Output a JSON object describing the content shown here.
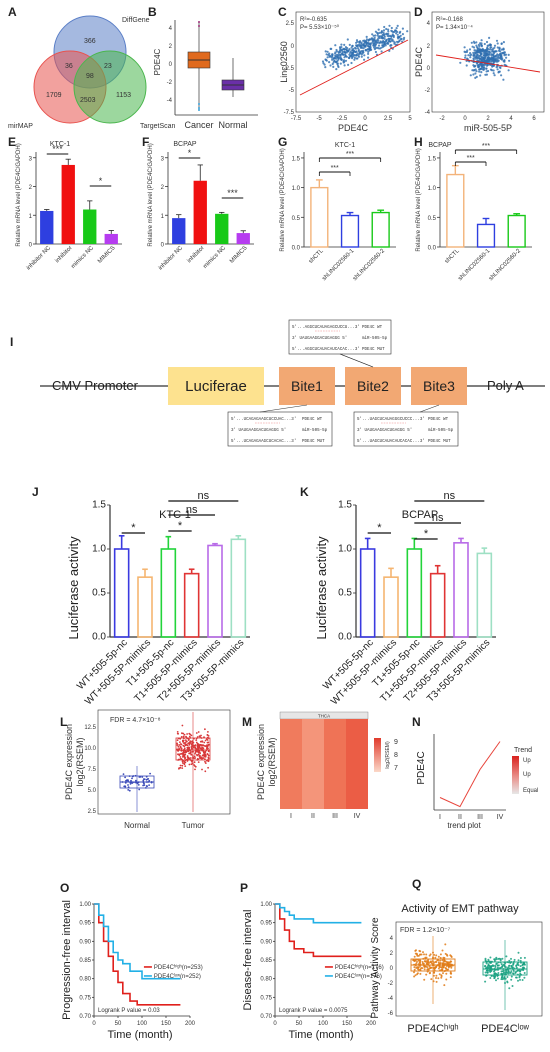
{
  "panels": {
    "A": {
      "label": "A",
      "sets": [
        "DiffGene",
        "mirMAP",
        "TargetScan"
      ],
      "counts": {
        "diffgene_only": "366",
        "diff_mirmap": "36",
        "diff_target": "23",
        "all": "98",
        "mirmap_only": "1709",
        "mirmap_target": "2503",
        "target_only": "1153"
      },
      "colors": {
        "diffgene": "#5b7fc7",
        "mirmap": "#e8534f",
        "targetscan": "#4bb64e"
      }
    },
    "B": {
      "label": "B",
      "ylabel": "PDE4C",
      "ticks": [
        "4",
        "2",
        "0",
        "-2",
        "-4"
      ],
      "groups": [
        "Cancer",
        "Normal"
      ],
      "colors": {
        "cancer": "#e06a1e",
        "normal": "#6a2fa8"
      }
    },
    "C": {
      "label": "C",
      "r2": "R²=-0.635",
      "p": "P= 5.53×10⁻⁵⁰",
      "xlabel": "PDE4C",
      "ylabel": "Linc02560",
      "xticks": [
        "-7.5",
        "-5",
        "-2.5",
        "0",
        "2.5",
        "5"
      ],
      "yticks": [
        "2.5",
        "0",
        "-2.5",
        "-5",
        "-7.5"
      ]
    },
    "D": {
      "label": "D",
      "r2": "R²=-0.168",
      "p": "P= 1.34×10⁻⁴",
      "xlabel": "miR-505-5P",
      "ylabel": "PDE4C",
      "xticks": [
        "-2",
        "0",
        "2",
        "4",
        "6"
      ],
      "yticks": [
        "4",
        "2",
        "0",
        "-2",
        "-4"
      ]
    },
    "E": {
      "label": "E",
      "title": "KTC-1",
      "ylabel": "Relative mRNA level (PDE4C/GAPDH)",
      "yticks": [
        "3",
        "2",
        "1",
        "0"
      ],
      "categories": [
        "inhibitor NC",
        "inhibitor",
        "mimics NC",
        "MIMICS"
      ],
      "sig": [
        "***",
        "*"
      ]
    },
    "F": {
      "label": "F",
      "title": "BCPAP",
      "ylabel": "Relative mRNA level (PDE4C/GAPDH)",
      "yticks": [
        "3",
        "2",
        "1",
        "0"
      ],
      "categories": [
        "inhibitor NC",
        "inhibitor",
        "mimics NC",
        "MIMICS"
      ],
      "sig": [
        "*",
        "***"
      ]
    },
    "G": {
      "label": "G",
      "title": "KTC-1",
      "ylabel": "Relative mRNA level (PDE4C/GAPDH)",
      "yticks": [
        "1.5",
        "1.0",
        "0.5",
        "0.0"
      ],
      "categories": [
        "shCTL",
        "shLINC02560-1",
        "shLINC02560-2"
      ],
      "sig": [
        "***",
        "***"
      ]
    },
    "H": {
      "label": "H",
      "title": "BCPAP",
      "ylabel": "Relative mRNA level (PDE4C/GAPDH)",
      "yticks": [
        "1.5",
        "1.0",
        "0.5",
        "0.0"
      ],
      "categories": [
        "shCTL",
        "shLINC02560-1",
        "shLINC02560-2"
      ],
      "sig": [
        "***",
        "***"
      ]
    },
    "I": {
      "label": "I",
      "promoter": "CMV Promoter",
      "reporter": "Luciferae",
      "sites": [
        "Bite1",
        "Bite2",
        "Bite3"
      ],
      "polya": "Poly A",
      "box_top": [
        {
          "seq": "5'...AGGCUCAUAGAGCUCCU...3'",
          "tag": "PDE4C  WT"
        },
        {
          "seq": "3'   UAUGAAGGACUGAGGG    5'",
          "tag": "miR-505-5p"
        },
        {
          "seq": "5'...AGGCUCAUACAUCACAC...3'",
          "tag": "PDE4C  MUT"
        }
      ],
      "box_left": [
        {
          "seq": "5'...UCAGAGAAGCUCCUAC...3'",
          "tag": "PDE4C  WT"
        },
        {
          "seq": "3'   UAUGAAGGACUGAGGG  5'",
          "tag": "miR-505-5p"
        },
        {
          "seq": "5'...UCAGAGAAGCUCACAC...3'",
          "tag": "PDE4C  MUT"
        }
      ],
      "box_right": [
        {
          "seq": "5'...UAGCUCAUAGGGCUCCC...3'",
          "tag": "PDE4C  WT"
        },
        {
          "seq": "3'   UAUGAAGGACUGAGGG    5'",
          "tag": "miR-505-5p"
        },
        {
          "seq": "5'...UAGCUCAUACAUCACAC...3'",
          "tag": "PDE4C  MUT"
        }
      ]
    },
    "J": {
      "label": "J",
      "title": "KTC-1",
      "ylabel": "Luciferase activity",
      "yticks": [
        "1.5",
        "1.0",
        "0.5",
        "0.0"
      ],
      "categories": [
        "WT+505-5p-nc",
        "WT+505-5P-mimics",
        "T1+505-5p-nc",
        "T1+505-5P-mimics",
        "T2+505-5P-mimics",
        "T3+505-5P-mimics"
      ],
      "sig": [
        "*",
        "*",
        "ns",
        "ns"
      ]
    },
    "K": {
      "label": "K",
      "title": "BCPAP",
      "ylabel": "Luciferase activity",
      "yticks": [
        "1.5",
        "1.0",
        "0.5",
        "0.0"
      ],
      "categories": [
        "WT+505-5p-nc",
        "WT+505-5P-mimics",
        "T1+505-5p-nc",
        "T1+505-5P-mimics",
        "T2+505-5P-mimics",
        "T3+505-5P-mimics"
      ],
      "sig": [
        "*",
        "*",
        "ns",
        "ns"
      ]
    },
    "L": {
      "label": "L",
      "fdr": "FDR = 4.7×10⁻⁸",
      "ylabel1": "PDE4C expression",
      "ylabel2": "log2(RSEM)",
      "yticks": [
        "12.5",
        "10.0",
        "7.5",
        "5.0",
        "2.5"
      ],
      "groups": [
        "Normal",
        "Tumor"
      ]
    },
    "M": {
      "label": "M",
      "header": "THCA",
      "ylabel1": "PDE4C expression",
      "ylabel2": "log2(RSEM)",
      "stages": [
        "I",
        "II",
        "III",
        "IV"
      ],
      "scale_label": "log2(RSEM)",
      "scale_ticks": [
        "9",
        "8",
        "7"
      ]
    },
    "N": {
      "label": "N",
      "ylabel": "PDE4C",
      "xlabel": "trend plot",
      "stages": [
        "I",
        "II",
        "III",
        "IV"
      ],
      "legend_title": "Trend",
      "legend_items": [
        "Up",
        "Up",
        "Equal"
      ]
    },
    "O": {
      "label": "O",
      "ylabel": "Progression-free interval",
      "xlabel": "Time (month)",
      "yticks": [
        "1.00",
        "0.95",
        "0.90",
        "0.85",
        "0.80",
        "0.75",
        "0.70"
      ],
      "xticks": [
        "0",
        "50",
        "100",
        "150",
        "200"
      ],
      "legend": [
        "PDE4Cʰⁱᵍʰ(n=253)",
        "PDE4Cˡᵒʷ(n=252)"
      ],
      "pval": "Logrank P value = 0.03"
    },
    "P": {
      "label": "P",
      "ylabel": "Disease-free interval",
      "xlabel": "Time (month)",
      "yticks": [
        "1.00",
        "0.95",
        "0.90",
        "0.85",
        "0.80",
        "0.75",
        "0.70"
      ],
      "xticks": [
        "0",
        "50",
        "100",
        "150",
        "200"
      ],
      "legend": [
        "PDE4Cʰⁱᵍʰ(n=176)",
        "PDE4Cˡᵒʷ(n=176)"
      ],
      "pval": "Logrank P value = 0.0075"
    },
    "Q": {
      "label": "Q",
      "title": "Activity of EMT pathway",
      "fdr": "FDR = 1.2×10⁻⁷",
      "ylabel": "Pathway Activity Score",
      "yticks": [
        "4",
        "2",
        "0",
        "-2",
        "-4",
        "-6"
      ],
      "groups": [
        "PDE4Cʰⁱᵍʰ",
        "PDE4Cˡᵒʷ"
      ]
    }
  },
  "chart_data": [
    {
      "type": "bar",
      "title": "KTC-1",
      "ylabel": "Relative mRNA level (PDE4C/GAPDH)",
      "categories": [
        "inhibitor NC",
        "inhibitor",
        "mimics NC",
        "MIMICS"
      ],
      "values": [
        1.15,
        2.75,
        1.2,
        0.35
      ],
      "errors": [
        0.05,
        0.2,
        0.3,
        0.12
      ],
      "ylim": [
        0,
        3.2
      ],
      "colors": [
        "#2e3fe0",
        "#f01010",
        "#18c918",
        "#b63cf0"
      ]
    },
    {
      "type": "bar",
      "title": "BCPAP",
      "ylabel": "Relative mRNA level (PDE4C/GAPDH)",
      "categories": [
        "inhibitor NC",
        "inhibitor",
        "mimics NC",
        "MIMICS"
      ],
      "values": [
        0.9,
        2.2,
        1.05,
        0.38
      ],
      "errors": [
        0.12,
        0.55,
        0.05,
        0.08
      ],
      "ylim": [
        0,
        3.2
      ],
      "colors": [
        "#2e3fe0",
        "#f01010",
        "#18c918",
        "#b63cf0"
      ]
    },
    {
      "type": "bar",
      "title": "KTC-1",
      "ylabel": "Relative mRNA level (PDE4C/GAPDH)",
      "categories": [
        "shCTL",
        "shLINC02560-1",
        "shLINC02560-2"
      ],
      "values": [
        1.0,
        0.53,
        0.58
      ],
      "errors": [
        0.13,
        0.05,
        0.04
      ],
      "ylim": [
        0,
        1.6
      ],
      "colors": [
        "#f3b37a",
        "#2e3fe0",
        "#18c918"
      ]
    },
    {
      "type": "bar",
      "title": "BCPAP",
      "ylabel": "Relative mRNA level (PDE4C/GAPDH)",
      "categories": [
        "shCTL",
        "shLINC02560-1",
        "shLINC02560-2"
      ],
      "values": [
        1.22,
        0.38,
        0.53
      ],
      "errors": [
        0.15,
        0.1,
        0.03
      ],
      "ylim": [
        0,
        1.6
      ],
      "colors": [
        "#f3b37a",
        "#2e3fe0",
        "#18c918"
      ]
    },
    {
      "type": "bar",
      "title": "KTC-1",
      "ylabel": "Luciferase activity",
      "categories": [
        "WT+505-5p-nc",
        "WT+505-5P-mimics",
        "T1+505-5p-nc",
        "T1+505-5P-mimics",
        "T2+505-5P-mimics",
        "T3+505-5P-mimics"
      ],
      "values": [
        1.0,
        0.68,
        1.0,
        0.72,
        1.04,
        1.11
      ],
      "errors": [
        0.15,
        0.09,
        0.14,
        0.05,
        0.02,
        0.04
      ],
      "ylim": [
        0,
        1.5
      ],
      "colors": [
        "#3a3ae0",
        "#f5b571",
        "#22d43a",
        "#e03434",
        "#b86be8",
        "#9ee0c4"
      ]
    },
    {
      "type": "bar",
      "title": "BCPAP",
      "ylabel": "Luciferase activity",
      "categories": [
        "WT+505-5p-nc",
        "WT+505-5P-mimics",
        "T1+505-5p-nc",
        "T1+505-5P-mimics",
        "T2+505-5P-mimics",
        "T3+505-5P-mimics"
      ],
      "values": [
        1.0,
        0.68,
        1.0,
        0.72,
        1.07,
        0.95
      ],
      "errors": [
        0.12,
        0.1,
        0.12,
        0.09,
        0.05,
        0.06
      ],
      "ylim": [
        0,
        1.5
      ],
      "colors": [
        "#3a3ae0",
        "#f5b571",
        "#22d43a",
        "#e03434",
        "#b86be8",
        "#9ee0c4"
      ]
    },
    {
      "type": "line",
      "ylabel": "PDE4C",
      "xlabel": "trend plot",
      "categories": [
        "I",
        "II",
        "III",
        "IV"
      ],
      "values": [
        0.15,
        0.02,
        0.55,
        0.95
      ],
      "color": "#e8453c"
    },
    {
      "type": "line",
      "ylabel": "Progression-free interval",
      "xlabel": "Time (month)",
      "ylim": [
        0.7,
        1.0
      ],
      "xlim": [
        0,
        200
      ],
      "series": [
        {
          "name": "PDE4Cʰⁱᵍʰ(n=253)",
          "color": "#e0201c",
          "x": [
            0,
            10,
            20,
            30,
            40,
            50,
            60,
            75,
            90,
            180
          ],
          "y": [
            1.0,
            0.95,
            0.9,
            0.86,
            0.82,
            0.79,
            0.76,
            0.74,
            0.73,
            0.73
          ]
        },
        {
          "name": "PDE4Cˡᵒʷ(n=252)",
          "color": "#22b0e6",
          "x": [
            0,
            10,
            20,
            30,
            40,
            50,
            60,
            75,
            100,
            180
          ],
          "y": [
            1.0,
            0.97,
            0.94,
            0.9,
            0.87,
            0.85,
            0.84,
            0.82,
            0.8,
            0.8
          ]
        }
      ]
    },
    {
      "type": "line",
      "ylabel": "Disease-free interval",
      "xlabel": "Time (month)",
      "ylim": [
        0.7,
        1.0
      ],
      "xlim": [
        0,
        200
      ],
      "series": [
        {
          "name": "PDE4Cʰⁱᵍʰ(n=176)",
          "color": "#e0201c",
          "x": [
            0,
            10,
            20,
            30,
            40,
            60,
            80,
            180
          ],
          "y": [
            1.0,
            0.96,
            0.93,
            0.9,
            0.88,
            0.87,
            0.86,
            0.86
          ]
        },
        {
          "name": "PDE4Cˡᵒʷ(n=176)",
          "color": "#22b0e6",
          "x": [
            0,
            10,
            20,
            30,
            40,
            60,
            80,
            180
          ],
          "y": [
            1.0,
            0.99,
            0.98,
            0.97,
            0.96,
            0.96,
            0.95,
            0.95
          ]
        }
      ]
    }
  ]
}
